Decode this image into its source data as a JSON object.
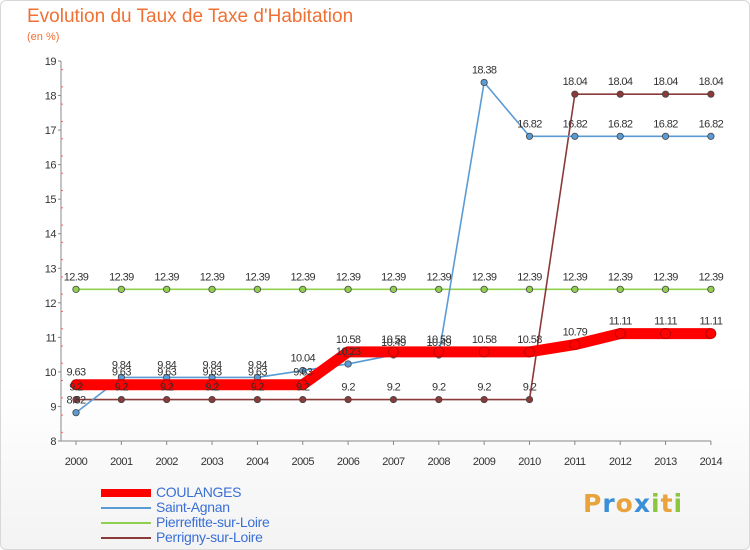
{
  "chart_data": {
    "type": "line",
    "title": "Evolution du Taux de Taxe d'Habitation",
    "subtitle": "(en %)",
    "x": [
      "2000",
      "2001",
      "2002",
      "2003",
      "2004",
      "2005",
      "2006",
      "2007",
      "2008",
      "2009",
      "2010",
      "2011",
      "2012",
      "2013",
      "2014"
    ],
    "ylim": [
      8,
      19
    ],
    "yticks": [
      "8",
      "9",
      "10",
      "11",
      "12",
      "13",
      "14",
      "15",
      "16",
      "17",
      "18",
      "19"
    ],
    "series": [
      {
        "name": "COULANGES",
        "color": "#ff0000",
        "values": [
          9.63,
          9.63,
          9.63,
          9.63,
          9.63,
          9.63,
          10.58,
          10.58,
          10.58,
          10.58,
          10.58,
          10.79,
          11.11,
          11.11,
          11.11
        ],
        "labels": [
          "9.63",
          "9.63",
          "9.63",
          "9.63",
          "9.63",
          "9.63",
          "10.58",
          "10.58",
          "10.58",
          "10.58",
          "10.58",
          "10.79",
          "11.11",
          "11.11",
          "11.11"
        ]
      },
      {
        "name": "Saint-Agnan",
        "color": "#5b9bd5",
        "values": [
          8.82,
          9.84,
          9.84,
          9.84,
          9.84,
          10.04,
          10.23,
          10.49,
          10.49,
          18.38,
          16.82,
          16.82,
          16.82,
          16.82,
          16.82
        ],
        "labels": [
          "8.82",
          "9.84",
          "9.84",
          "9.84",
          "9.84",
          "10.04",
          "10.23",
          "10.49",
          "10.49",
          "18.38",
          "16.82",
          "16.82",
          "16.82",
          "16.82",
          "16.82"
        ]
      },
      {
        "name": "Pierrefitte-sur-Loire",
        "color": "#8fd14f",
        "values": [
          12.39,
          12.39,
          12.39,
          12.39,
          12.39,
          12.39,
          12.39,
          12.39,
          12.39,
          12.39,
          12.39,
          12.39,
          12.39,
          12.39,
          12.39
        ],
        "labels": [
          "12.39",
          "12.39",
          "12.39",
          "12.39",
          "12.39",
          "12.39",
          "12.39",
          "12.39",
          "12.39",
          "12.39",
          "12.39",
          "12.39",
          "12.39",
          "12.39",
          "12.39"
        ]
      },
      {
        "name": "Perrigny-sur-Loire",
        "color": "#8b3a3a",
        "values": [
          9.2,
          9.2,
          9.2,
          9.2,
          9.2,
          9.2,
          9.2,
          9.2,
          9.2,
          9.2,
          9.2,
          18.04,
          18.04,
          18.04,
          18.04
        ],
        "labels": [
          "9.2",
          "9.2",
          "9.2",
          "9.2",
          "9.2",
          "9.2",
          "9.2",
          "9.2",
          "9.2",
          "9.2",
          "9.2",
          "18.04",
          "18.04",
          "18.04",
          "18.04"
        ]
      }
    ],
    "grid": false,
    "legend_position": "bottom-left"
  },
  "logo": {
    "letters": [
      "P",
      "r",
      "o",
      "x",
      "i",
      "t",
      "i"
    ],
    "colors": [
      "#e8a33d",
      "#3a8fd6",
      "#e8a33d",
      "#3a8fd6",
      "#8cc63f",
      "#e8a33d",
      "#8cc63f"
    ]
  }
}
